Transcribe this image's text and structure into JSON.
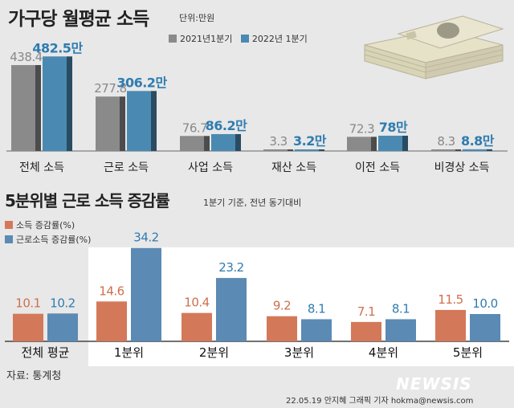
{
  "header": {
    "title": "가구당 월평균 소득",
    "unit": "단위:만원",
    "legend": [
      "2021년1분기",
      "2022년 1분기"
    ]
  },
  "colors": {
    "series_2021": "#8a8a8a",
    "series_2022": "#4a8ab2",
    "series_income_growth": "#d4785a",
    "series_labor_growth": "#5b8ab4",
    "value_gray": "#888888",
    "value_blue": "#2f7cb0",
    "value_orange": "#cf6f4e"
  },
  "section2": {
    "title": "5분위별 근로 소득 증감률",
    "subtitle": "1분기 기준, 전년 동기대비",
    "legend": [
      "소득 증감률(%)",
      "근로소득 증감률(%)"
    ]
  },
  "footer": {
    "source": "자료: 통계청",
    "credit": "22.05.19 안지혜 그래픽 기자  hokma@newsis.com",
    "brand": "NEWSIS"
  },
  "chart_data": [
    {
      "type": "bar",
      "title": "가구당 월평균 소득",
      "unit": "만원",
      "categories": [
        "전체 소득",
        "근로 소득",
        "사업 소득",
        "재산 소득",
        "이전 소득",
        "비경상 소득"
      ],
      "series": [
        {
          "name": "2021년1분기",
          "values": [
            438.4,
            277.8,
            76.7,
            3.3,
            72.3,
            8.3
          ],
          "labels": [
            "438.4",
            "277.8",
            "76.7",
            "3.3",
            "72.3",
            "8.3"
          ]
        },
        {
          "name": "2022년 1분기",
          "values": [
            482.5,
            306.2,
            86.2,
            3.2,
            78,
            8.8
          ],
          "labels": [
            "482.5만",
            "306.2만",
            "86.2만",
            "3.2만",
            "78만",
            "8.8만"
          ]
        }
      ],
      "ylim": [
        0,
        500
      ]
    },
    {
      "type": "bar",
      "title": "5분위별 근로 소득 증감률",
      "unit": "%",
      "categories": [
        "전체 평균",
        "1분위",
        "2분위",
        "3분위",
        "4분위",
        "5분위"
      ],
      "series": [
        {
          "name": "소득 증감률(%)",
          "values": [
            10.1,
            14.6,
            10.4,
            9.2,
            7.1,
            11.5
          ],
          "labels": [
            "10.1",
            "14.6",
            "10.4",
            "9.2",
            "7.1",
            "11.5"
          ]
        },
        {
          "name": "근로소득 증감률(%)",
          "values": [
            10.2,
            34.2,
            23.2,
            8.1,
            8.1,
            10.0
          ],
          "labels": [
            "10.2",
            "34.2",
            "23.2",
            "8.1",
            "8.1",
            "10.0"
          ]
        }
      ],
      "ylim": [
        0,
        40
      ]
    }
  ]
}
